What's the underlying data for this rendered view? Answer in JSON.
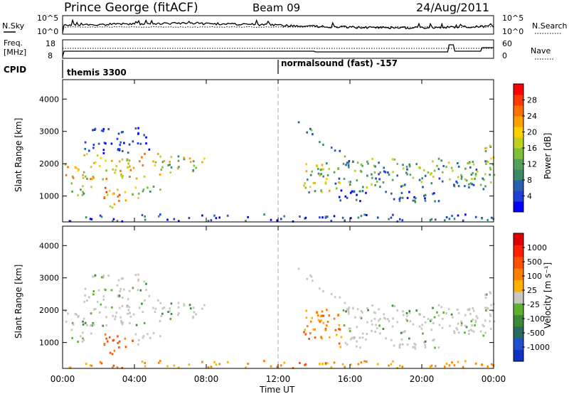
{
  "header": {
    "site": "Prince George (fitACF)",
    "beam": "Beam 09",
    "date": "24/Aug/2011"
  },
  "strip_nsky": {
    "left_label": "N.Sky",
    "right_label": "N.Search",
    "left_ticks": [
      "10^5",
      "10^0"
    ],
    "right_ticks": [
      "10^5",
      "10^0"
    ]
  },
  "strip_freq": {
    "left_label_1": "Freq.",
    "left_label_2": "[MHz]",
    "right_label": "Nave",
    "left_ticks": [
      "18",
      "8"
    ],
    "right_ticks": [
      "60",
      "0"
    ]
  },
  "cpid": {
    "label": "CPID",
    "program_1": "themis 3300",
    "program_2": "normalsound (fast) -157"
  },
  "power_colorbar": {
    "label": "Power [dB]",
    "ticks": [
      "28",
      "24",
      "20",
      "16",
      "12",
      "8",
      "4"
    ],
    "colors": [
      "#0000ff",
      "#1f3fd6",
      "#2a5fb0",
      "#3a8a6a",
      "#55a05a",
      "#7fc03a",
      "#c0d020",
      "#ffd000",
      "#ffa000",
      "#ff7000",
      "#ff3a00",
      "#ff0000"
    ]
  },
  "velocity_colorbar": {
    "label": "Velocity [m s⁻¹]",
    "ticks": [
      "1000",
      "500",
      "100",
      "25",
      "-25",
      "-100",
      "-500",
      "-1000"
    ],
    "colors": [
      "#1030c0",
      "#2050d0",
      "#2a6a60",
      "#3a8a3a",
      "#60b030",
      "#c8c8c0",
      "#ffb000",
      "#ff8000",
      "#ff5000",
      "#ff2000",
      "#e00000"
    ]
  },
  "chart_data": [
    {
      "type": "line",
      "title": "N.Sky / N.Search",
      "x_range": [
        "00:00",
        "24:00"
      ],
      "note": "noise time series (log scale 10^0 to 10^5)"
    },
    {
      "type": "line",
      "title": "Freq. / Nave",
      "freq_ylim": [
        8,
        18
      ],
      "nave_ylim": [
        0,
        60
      ]
    },
    {
      "type": "heatmap",
      "title": "Power",
      "ylabel": "Slant Range [km]",
      "xlabel": "Time UT",
      "x_ticks": [
        "00:00",
        "04:00",
        "08:00",
        "12:00",
        "16:00",
        "20:00",
        "00:00"
      ],
      "y_ticks": [
        "1000",
        "2000",
        "3000",
        "4000"
      ],
      "ylim": [
        200,
        4600
      ],
      "xlim": [
        0,
        24
      ],
      "features": [
        {
          "t0": 0.0,
          "t1": 5.6,
          "r0": 1500,
          "r1": 2300,
          "level": 18
        },
        {
          "t0": 2.2,
          "t1": 3.8,
          "r0": 600,
          "r1": 1400,
          "level": 22
        },
        {
          "t0": 5.6,
          "t1": 8.0,
          "r0": 1800,
          "r1": 2200,
          "level": 14
        },
        {
          "t0": 13.3,
          "t1": 15.5,
          "r0": 1100,
          "r1": 2100,
          "level": 14
        },
        {
          "t0": 14.5,
          "t1": 24.0,
          "r0": 1200,
          "r1": 2100,
          "level": 10
        }
      ]
    },
    {
      "type": "heatmap",
      "title": "Velocity",
      "ylabel": "Slant Range [km]",
      "xlabel": "Time UT",
      "x_ticks": [
        "00:00",
        "04:00",
        "08:00",
        "12:00",
        "16:00",
        "20:00",
        "00:00"
      ],
      "y_ticks": [
        "1000",
        "2000",
        "3000",
        "4000"
      ],
      "ylim": [
        200,
        4600
      ],
      "xlim": [
        0,
        24
      ]
    }
  ],
  "xaxis": {
    "label": "Time UT",
    "ticks": [
      "00:00",
      "04:00",
      "08:00",
      "12:00",
      "16:00",
      "20:00",
      "00:00"
    ]
  },
  "yaxis": {
    "label": "Slant Range [km]",
    "ticks": [
      "1000",
      "2000",
      "3000",
      "4000"
    ]
  }
}
